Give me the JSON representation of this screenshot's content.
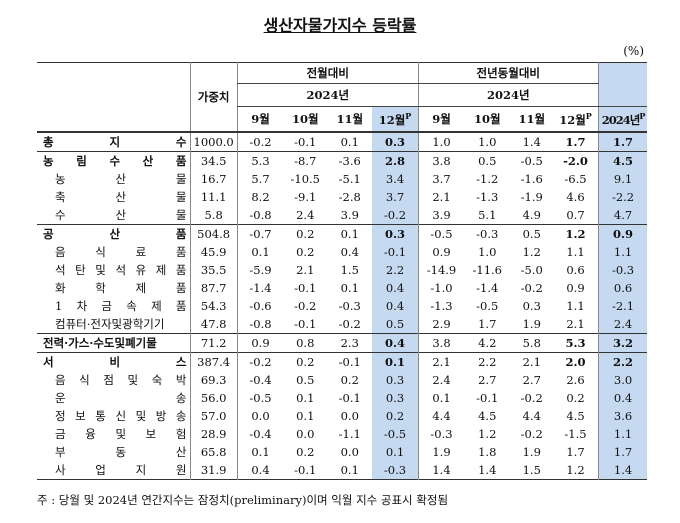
{
  "header": {
    "title": "생산자물가지수 등락률",
    "unit": "(%)"
  },
  "table": {
    "weight": "가중치",
    "mom": "전월대비",
    "yoy": "전년동월대비",
    "year": "2024년",
    "annual": "2024년",
    "annual_sup": "P",
    "months": [
      "9월",
      "10월",
      "11월",
      "12월"
    ],
    "month_sup": "P",
    "rows": [
      {
        "label": "총 지 수",
        "group": true,
        "weight": "1000.0",
        "mom": [
          "-0.2",
          "-0.1",
          "0.1",
          "0.3"
        ],
        "yoy": [
          "1.0",
          "1.0",
          "1.4",
          "1.7"
        ],
        "annual": "1.7"
      },
      {
        "label": "농 림 수 산 품",
        "group": true,
        "weight": "34.5",
        "mom": [
          "5.3",
          "-8.7",
          "-3.6",
          "2.8"
        ],
        "yoy": [
          "3.8",
          "0.5",
          "-0.5",
          "-2.0"
        ],
        "annual": "4.5"
      },
      {
        "label": "농 산 물",
        "group": false,
        "weight": "16.7",
        "mom": [
          "5.7",
          "-10.5",
          "-5.1",
          "3.4"
        ],
        "yoy": [
          "3.7",
          "-1.2",
          "-1.6",
          "-6.5"
        ],
        "annual": "9.1"
      },
      {
        "label": "축 산 물",
        "group": false,
        "weight": "11.1",
        "mom": [
          "8.2",
          "-9.1",
          "-2.8",
          "3.7"
        ],
        "yoy": [
          "2.1",
          "-1.3",
          "-1.9",
          "4.6"
        ],
        "annual": "-2.2"
      },
      {
        "label": "수 산 물",
        "group": false,
        "weight": "5.8",
        "mom": [
          "-0.8",
          "2.4",
          "3.9",
          "-0.2"
        ],
        "yoy": [
          "3.9",
          "5.1",
          "4.9",
          "0.7"
        ],
        "annual": "4.7"
      },
      {
        "label": "공 산 품",
        "group": true,
        "weight": "504.8",
        "mom": [
          "-0.7",
          "0.2",
          "0.1",
          "0.3"
        ],
        "yoy": [
          "-0.5",
          "-0.3",
          "0.5",
          "1.2"
        ],
        "annual": "0.9"
      },
      {
        "label": "음 식 료 품",
        "group": false,
        "weight": "45.9",
        "mom": [
          "0.1",
          "0.2",
          "0.4",
          "-0.1"
        ],
        "yoy": [
          "0.9",
          "1.0",
          "1.2",
          "1.1"
        ],
        "annual": "1.1"
      },
      {
        "label": "석 탄 및 석 유 제 품",
        "group": false,
        "weight": "35.5",
        "mom": [
          "-5.9",
          "2.1",
          "1.5",
          "2.2"
        ],
        "yoy": [
          "-14.9",
          "-11.6",
          "-5.0",
          "0.6"
        ],
        "annual": "-0.3"
      },
      {
        "label": "화 학 제 품",
        "group": false,
        "weight": "87.7",
        "mom": [
          "-1.4",
          "-0.1",
          "0.1",
          "0.4"
        ],
        "yoy": [
          "-1.0",
          "-1.4",
          "-0.2",
          "0.9"
        ],
        "annual": "0.6"
      },
      {
        "label": "1 차 금 속 제 품",
        "group": false,
        "weight": "54.3",
        "mom": [
          "-0.6",
          "-0.2",
          "-0.3",
          "0.4"
        ],
        "yoy": [
          "-1.3",
          "-0.5",
          "0.3",
          "1.1"
        ],
        "annual": "-2.1"
      },
      {
        "label": "컴퓨터·전자및광학기기",
        "group": false,
        "weight": "47.8",
        "mom": [
          "-0.8",
          "-0.1",
          "-0.2",
          "0.5"
        ],
        "yoy": [
          "2.9",
          "1.7",
          "1.9",
          "2.1"
        ],
        "annual": "2.4"
      },
      {
        "label": "전력·가스·수도및폐기물",
        "group": true,
        "weight": "71.2",
        "mom": [
          "0.9",
          "0.8",
          "2.3",
          "0.4"
        ],
        "yoy": [
          "3.8",
          "4.2",
          "5.8",
          "5.3"
        ],
        "annual": "3.2"
      },
      {
        "label": "서 비 스",
        "group": true,
        "weight": "387.4",
        "mom": [
          "-0.2",
          "0.2",
          "-0.1",
          "0.1"
        ],
        "yoy": [
          "2.1",
          "2.2",
          "2.1",
          "2.0"
        ],
        "annual": "2.2"
      },
      {
        "label": "음 식 점 및 숙 박",
        "group": false,
        "weight": "69.3",
        "mom": [
          "-0.4",
          "0.5",
          "0.2",
          "0.3"
        ],
        "yoy": [
          "2.4",
          "2.7",
          "2.7",
          "2.6"
        ],
        "annual": "3.0"
      },
      {
        "label": "운 송",
        "group": false,
        "weight": "56.0",
        "mom": [
          "-0.5",
          "0.1",
          "-0.1",
          "0.3"
        ],
        "yoy": [
          "0.1",
          "-0.1",
          "-0.2",
          "0.2"
        ],
        "annual": "0.4"
      },
      {
        "label": "정 보 통 신 및 방 송",
        "group": false,
        "weight": "57.0",
        "mom": [
          "0.0",
          "0.1",
          "0.0",
          "0.2"
        ],
        "yoy": [
          "4.4",
          "4.5",
          "4.4",
          "4.5"
        ],
        "annual": "3.6"
      },
      {
        "label": "금 융 및 보 험",
        "group": false,
        "weight": "28.9",
        "mom": [
          "-0.4",
          "0.0",
          "-1.1",
          "-0.5"
        ],
        "yoy": [
          "-0.3",
          "1.2",
          "-0.2",
          "-1.5"
        ],
        "annual": "1.1"
      },
      {
        "label": "부 동 산",
        "group": false,
        "weight": "65.8",
        "mom": [
          "0.1",
          "0.2",
          "0.0",
          "0.1"
        ],
        "yoy": [
          "1.9",
          "1.8",
          "1.9",
          "1.7"
        ],
        "annual": "1.7"
      },
      {
        "label": "사 업 지 원",
        "group": false,
        "weight": "31.9",
        "mom": [
          "0.4",
          "-0.1",
          "0.1",
          "-0.3"
        ],
        "yoy": [
          "1.4",
          "1.4",
          "1.5",
          "1.2"
        ],
        "annual": "1.4"
      }
    ]
  },
  "footnote": "주 : 당월 및 2024년 연간지수는 잠정치(preliminary)이며 익월 지수 공표시 확정됨"
}
